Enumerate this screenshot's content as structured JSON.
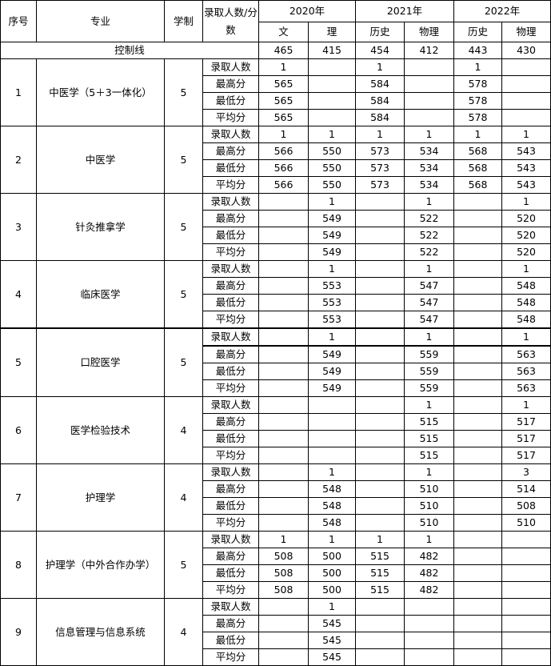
{
  "headers": {
    "no": "序号",
    "major": "专业",
    "years": "学制",
    "metric": "录取人数/分数",
    "year_groups": [
      "2020年",
      "2021年",
      "2022年"
    ],
    "subjects": [
      "文",
      "理",
      "历史",
      "物理",
      "历史",
      "物理"
    ]
  },
  "control_line": {
    "label": "控制线",
    "values": [
      "465",
      "415",
      "454",
      "412",
      "443",
      "430"
    ]
  },
  "row_labels": [
    "录取人数",
    "最高分",
    "最低分",
    "平均分"
  ],
  "majors": [
    {
      "no": "1",
      "name": "中医学（5＋3一体化）",
      "years": "5",
      "rows": [
        [
          "1",
          "",
          "1",
          "",
          "1",
          ""
        ],
        [
          "565",
          "",
          "584",
          "",
          "578",
          ""
        ],
        [
          "565",
          "",
          "584",
          "",
          "578",
          ""
        ],
        [
          "565",
          "",
          "584",
          "",
          "578",
          ""
        ]
      ]
    },
    {
      "no": "2",
      "name": "中医学",
      "years": "5",
      "rows": [
        [
          "1",
          "1",
          "1",
          "1",
          "1",
          "1"
        ],
        [
          "566",
          "550",
          "573",
          "534",
          "568",
          "543"
        ],
        [
          "566",
          "550",
          "573",
          "534",
          "568",
          "543"
        ],
        [
          "566",
          "550",
          "573",
          "534",
          "568",
          "543"
        ]
      ]
    },
    {
      "no": "3",
      "name": "针灸推拿学",
      "years": "5",
      "rows": [
        [
          "",
          "1",
          "",
          "1",
          "",
          "1"
        ],
        [
          "",
          "549",
          "",
          "522",
          "",
          "520"
        ],
        [
          "",
          "549",
          "",
          "522",
          "",
          "520"
        ],
        [
          "",
          "549",
          "",
          "522",
          "",
          "520"
        ]
      ]
    },
    {
      "no": "4",
      "name": "临床医学",
      "years": "5",
      "rows": [
        [
          "",
          "1",
          "",
          "1",
          "",
          "1"
        ],
        [
          "",
          "553",
          "",
          "547",
          "",
          "548"
        ],
        [
          "",
          "553",
          "",
          "547",
          "",
          "548"
        ],
        [
          "",
          "553",
          "",
          "547",
          "",
          "548"
        ]
      ]
    },
    {
      "no": "5",
      "name": "口腔医学",
      "years": "5",
      "rows": [
        [
          "",
          "1",
          "",
          "1",
          "",
          "1"
        ],
        [
          "",
          "549",
          "",
          "559",
          "",
          "563"
        ],
        [
          "",
          "549",
          "",
          "559",
          "",
          "563"
        ],
        [
          "",
          "549",
          "",
          "559",
          "",
          "563"
        ]
      ]
    },
    {
      "no": "6",
      "name": "医学检验技术",
      "years": "4",
      "rows": [
        [
          "",
          "",
          "",
          "1",
          "",
          "1"
        ],
        [
          "",
          "",
          "",
          "515",
          "",
          "517"
        ],
        [
          "",
          "",
          "",
          "515",
          "",
          "517"
        ],
        [
          "",
          "",
          "",
          "515",
          "",
          "517"
        ]
      ]
    },
    {
      "no": "7",
      "name": "护理学",
      "years": "4",
      "rows": [
        [
          "",
          "1",
          "",
          "1",
          "",
          "3"
        ],
        [
          "",
          "548",
          "",
          "510",
          "",
          "514"
        ],
        [
          "",
          "548",
          "",
          "510",
          "",
          "508"
        ],
        [
          "",
          "548",
          "",
          "510",
          "",
          "510"
        ]
      ]
    },
    {
      "no": "8",
      "name": "护理学（中外合作办学）",
      "years": "5",
      "rows": [
        [
          "1",
          "1",
          "1",
          "1",
          "",
          ""
        ],
        [
          "508",
          "500",
          "515",
          "482",
          "",
          ""
        ],
        [
          "508",
          "500",
          "515",
          "482",
          "",
          ""
        ],
        [
          "508",
          "500",
          "515",
          "482",
          "",
          ""
        ]
      ]
    },
    {
      "no": "9",
      "name": "信息管理与信息系统",
      "years": "4",
      "rows": [
        [
          "",
          "1",
          "",
          "",
          "",
          ""
        ],
        [
          "",
          "545",
          "",
          "",
          "",
          ""
        ],
        [
          "",
          "545",
          "",
          "",
          "",
          ""
        ],
        [
          "",
          "545",
          "",
          "",
          "",
          ""
        ]
      ]
    }
  ]
}
